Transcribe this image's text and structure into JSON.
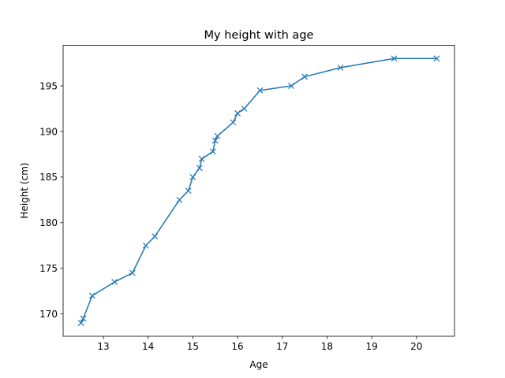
{
  "chart_data": {
    "type": "line",
    "title": "My height with age",
    "xlabel": "Age",
    "ylabel": "Height (cm)",
    "xlim": [
      12.1,
      20.85
    ],
    "ylim": [
      167.55,
      199.45
    ],
    "xticks": [
      13,
      14,
      15,
      16,
      17,
      18,
      19,
      20
    ],
    "yticks": [
      170,
      175,
      180,
      185,
      190,
      195
    ],
    "grid": false,
    "legend": "none",
    "series": [
      {
        "color": "#1f77b4",
        "marker": "x",
        "x": [
          12.5,
          12.55,
          12.75,
          13.25,
          13.65,
          13.95,
          14.15,
          14.7,
          14.9,
          15.0,
          15.15,
          15.2,
          15.45,
          15.5,
          15.55,
          15.9,
          16.0,
          16.15,
          16.5,
          17.2,
          17.5,
          18.3,
          19.5,
          20.45
        ],
        "y": [
          169.0,
          169.5,
          172.0,
          173.5,
          174.5,
          177.5,
          178.5,
          182.5,
          183.5,
          185.0,
          186.0,
          187.0,
          187.8,
          189.0,
          189.5,
          191.0,
          192.0,
          192.5,
          194.5,
          195.0,
          196.0,
          197.0,
          198.0,
          198.0
        ]
      }
    ]
  }
}
